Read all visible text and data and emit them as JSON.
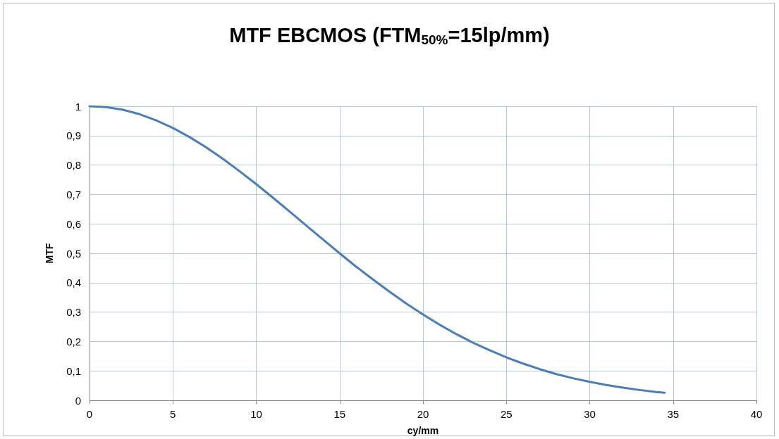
{
  "chart_data": {
    "type": "line",
    "title": "MTF EBCMOS (FTM$_{50%}$=15lp/mm)",
    "xlabel": "cy/mm",
    "ylabel": "MTF",
    "series": [
      {
        "color": "#4a7ebb",
        "x": [
          0,
          1,
          2,
          3,
          4,
          5,
          6,
          7,
          8,
          9,
          10,
          11,
          12,
          13,
          14,
          15,
          16,
          17,
          18,
          19,
          20,
          21,
          22,
          23,
          24,
          25,
          26,
          27,
          28,
          29,
          30,
          31,
          32,
          33,
          34,
          34.5
        ],
        "values": [
          1,
          0.997,
          0.988,
          0.973,
          0.952,
          0.926,
          0.895,
          0.86,
          0.821,
          0.779,
          0.735,
          0.689,
          0.642,
          0.594,
          0.547,
          0.5,
          0.454,
          0.411,
          0.369,
          0.329,
          0.292,
          0.257,
          0.225,
          0.196,
          0.17,
          0.146,
          0.125,
          0.106,
          0.089,
          0.075,
          0.063,
          0.052,
          0.043,
          0.035,
          0.028,
          0.026
        ]
      }
    ],
    "xlim": [
      0,
      40
    ],
    "xticks": [
      0,
      5,
      10,
      15,
      20,
      25,
      30,
      35,
      40
    ],
    "ylim": [
      0,
      1
    ],
    "yticks": [
      0,
      {
        "value": 0.1,
        "label": "0,1"
      },
      {
        "value": 0.2,
        "label": "0,2"
      },
      {
        "value": 0.3,
        "label": "0,3"
      },
      {
        "value": 0.4,
        "label": "0,4"
      },
      {
        "value": 0.5,
        "label": "0,5"
      },
      {
        "value": 0.6,
        "label": "0,6"
      },
      {
        "value": 0.7,
        "label": "0,7"
      },
      {
        "value": 0.8,
        "label": "0,8"
      },
      {
        "value": 0.9,
        "label": "0,9"
      },
      1
    ],
    "grid": true,
    "marker": "none",
    "line_style": "solid"
  }
}
